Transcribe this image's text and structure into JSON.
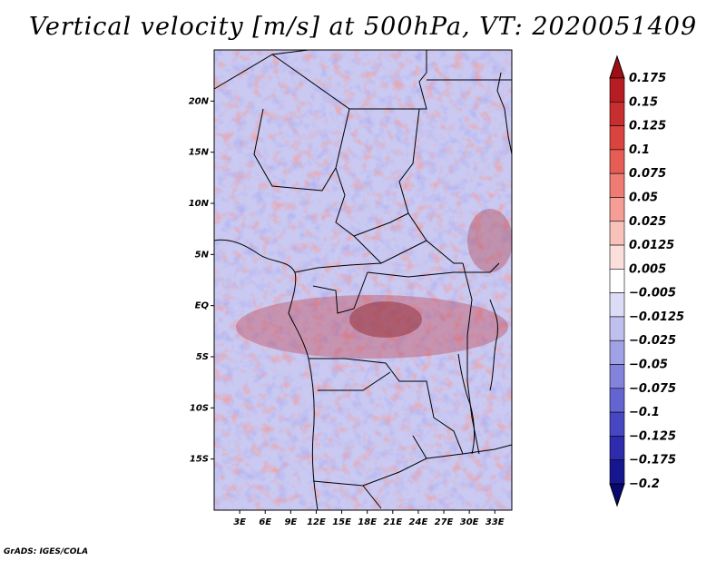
{
  "title": "Vertical velocity [m/s] at 500hPa, VT: 2020051409",
  "credit": "GrADS: IGES/COLA",
  "map": {
    "lon_range": [
      0,
      35
    ],
    "lat_range": [
      -20,
      25
    ],
    "lat_ticks": [
      "20N",
      "15N",
      "10N",
      "5N",
      "EQ",
      "5S",
      "10S",
      "15S"
    ],
    "lat_values": [
      20,
      15,
      10,
      5,
      0,
      -5,
      -10,
      -15
    ],
    "lon_ticks": [
      "3E",
      "6E",
      "9E",
      "12E",
      "15E",
      "18E",
      "21E",
      "24E",
      "27E",
      "30E",
      "33E"
    ],
    "lon_values": [
      3,
      6,
      9,
      12,
      15,
      18,
      21,
      24,
      27,
      30,
      33
    ]
  },
  "colorbar": {
    "labels": [
      "0.175",
      "0.15",
      "0.125",
      "0.1",
      "0.075",
      "0.05",
      "0.025",
      "0.0125",
      "0.005",
      "−0.005",
      "−0.0125",
      "−0.025",
      "−0.05",
      "−0.075",
      "−0.1",
      "−0.125",
      "−0.175",
      "−0.2"
    ],
    "colors": [
      "#9e0e14",
      "#b51d22",
      "#c72e30",
      "#d9443f",
      "#e55d55",
      "#ee7c72",
      "#f49e95",
      "#f8c2bb",
      "#fbdfdb",
      "#ffffff",
      "#dcdcf6",
      "#c0c0ef",
      "#a1a1e6",
      "#8383dc",
      "#6565d1",
      "#4747c2",
      "#2c2cad",
      "#16168f",
      "#080870"
    ]
  }
}
